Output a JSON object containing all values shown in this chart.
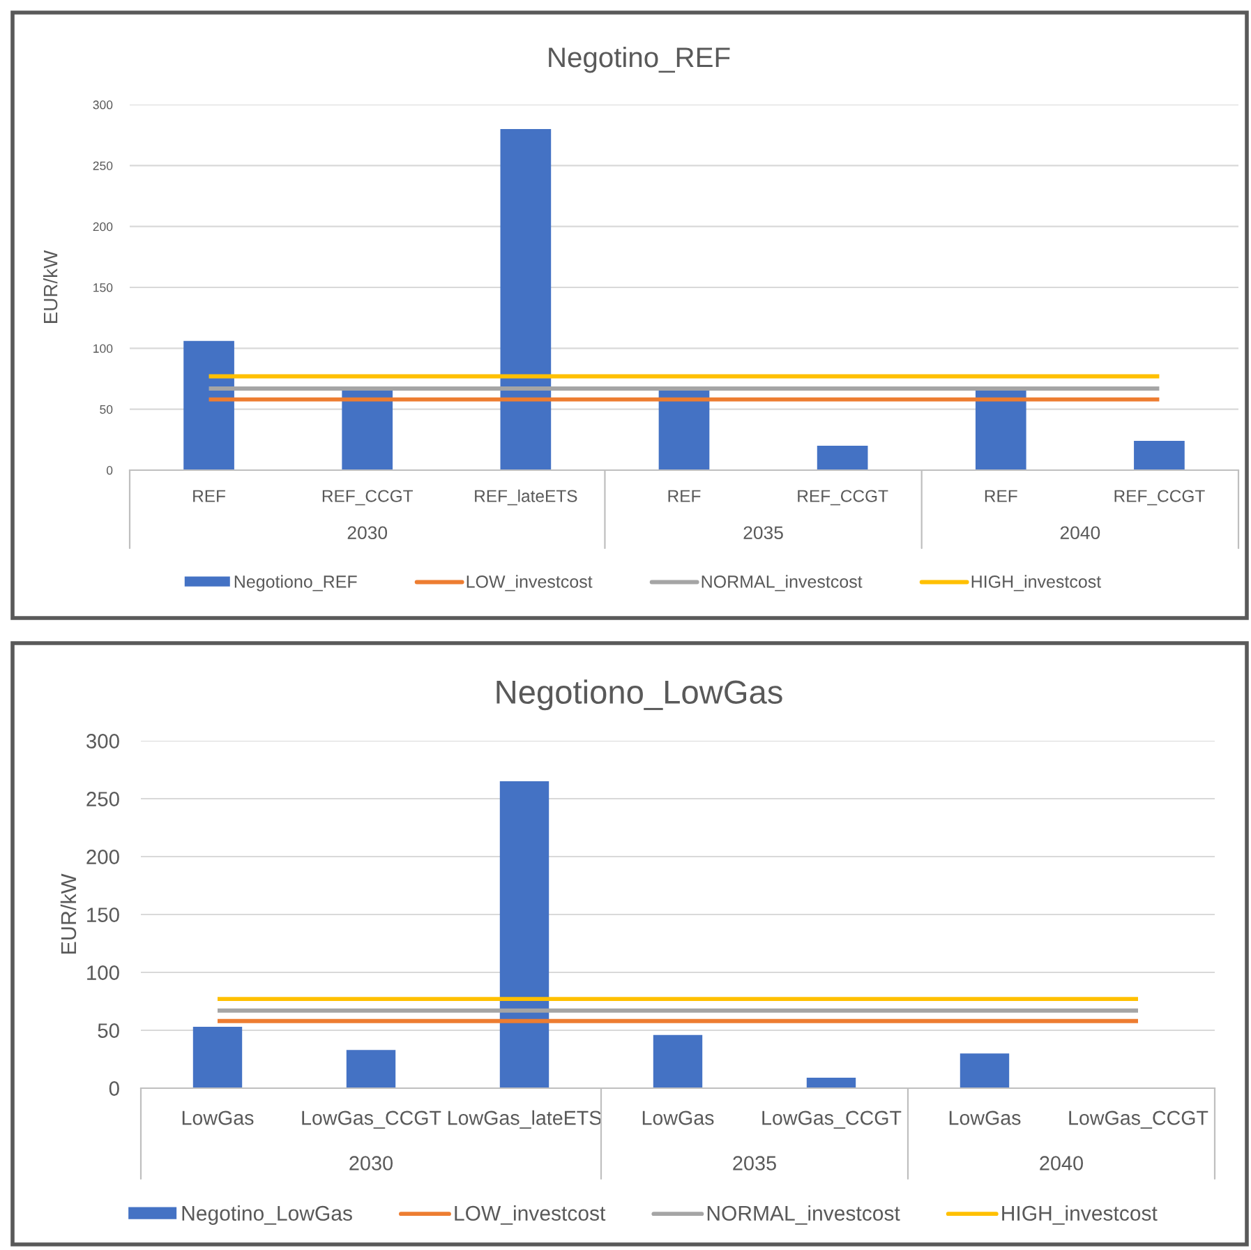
{
  "chart_data": [
    {
      "type": "bar",
      "title": "Negotino_REF",
      "ylabel": "EUR/kW",
      "categories": [
        "REF",
        "REF_CCGT",
        "REF_lateETS",
        "REF",
        "REF_CCGT",
        "REF",
        "REF_CCGT"
      ],
      "annotations": [
        "2030",
        "2035",
        "2040"
      ],
      "ylim": [
        0,
        300
      ],
      "yticks": [
        0,
        50,
        100,
        150,
        200,
        250,
        300
      ],
      "grid": "y",
      "legend": "bottom",
      "series": [
        {
          "name": "Negotiono_REF",
          "color": "#4472c4",
          "values": [
            106,
            66,
            280,
            66,
            20,
            66,
            24
          ]
        },
        {
          "name": "LOW_investcost",
          "type": "line",
          "color": "#ed7d31",
          "values": [
            58,
            58,
            58,
            58,
            58,
            58,
            58
          ]
        },
        {
          "name": "NORMAL_investcost",
          "type": "line",
          "color": "#a5a5a5",
          "values": [
            67,
            67,
            67,
            67,
            67,
            67,
            67
          ]
        },
        {
          "name": "HIGH_investcost",
          "type": "line",
          "color": "#ffc000",
          "values": [
            77,
            77,
            77,
            77,
            77,
            77,
            77
          ]
        }
      ]
    },
    {
      "type": "bar",
      "title": "Negotiono_LowGas",
      "ylabel": "EUR/kW",
      "categories": [
        "LowGas",
        "LowGas_CCGT",
        "LowGas_lateETS",
        "LowGas",
        "LowGas_CCGT",
        "LowGas",
        "LowGas_CCGT"
      ],
      "annotations": [
        "2030",
        "2035",
        "2040"
      ],
      "ylim": [
        0,
        300
      ],
      "yticks": [
        0,
        50,
        100,
        150,
        200,
        250,
        300
      ],
      "grid": "y",
      "legend": "bottom",
      "series": [
        {
          "name": "Negotino_LowGas",
          "color": "#4472c4",
          "values": [
            53,
            33,
            265,
            46,
            9,
            30,
            0
          ]
        },
        {
          "name": "LOW_investcost",
          "type": "line",
          "color": "#ed7d31",
          "values": [
            58,
            58,
            58,
            58,
            58,
            58,
            58
          ]
        },
        {
          "name": "NORMAL_investcost",
          "type": "line",
          "color": "#a5a5a5",
          "values": [
            67,
            67,
            67,
            67,
            67,
            67,
            67
          ]
        },
        {
          "name": "HIGH_investcost",
          "type": "line",
          "color": "#ffc000",
          "values": [
            77,
            77,
            77,
            77,
            77,
            77,
            77
          ]
        }
      ]
    }
  ]
}
